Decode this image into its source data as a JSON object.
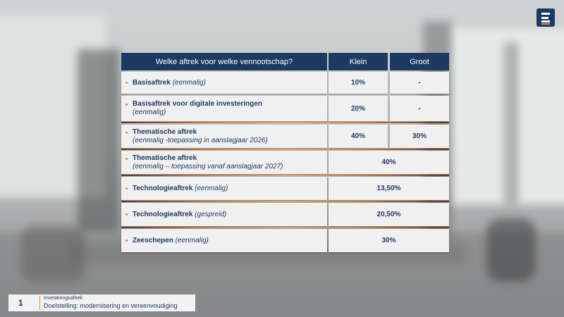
{
  "header": {
    "question": "Welke aftrek voor welke vennootschap?",
    "col_klein": "Klein",
    "col_groot": "Groot"
  },
  "rows": [
    {
      "name": "Basisaftrek",
      "note": "(eenmalig)",
      "klein": "10%",
      "groot": "-"
    },
    {
      "name": "Basisaftrek voor digitale investeringen",
      "note": "(eenmalig)",
      "klein": "20%",
      "groot": "-"
    },
    {
      "name": "Thematische aftrek",
      "note": "(eenmalig -toepassing in aanslagjaar 2026)",
      "klein": "40%",
      "groot": "30%"
    },
    {
      "name": "Thematische aftrek",
      "note": "(eenmalig – toepassing vanaf aanslagjaar 2027)",
      "value": "40%"
    },
    {
      "name": "Technologieaftrek",
      "note": "(eenmalig)",
      "value": "13,50%"
    },
    {
      "name": "Technologieaftrek",
      "note": "(gespreid)",
      "value": "20,50%"
    },
    {
      "name": "Zeeschepen",
      "note": "(eenmalig)",
      "value": "30%"
    }
  ],
  "footer": {
    "page_number": "1",
    "section": "Investeringsaftrek",
    "title": "Doelstelling: modernisering en vereenvoudiging"
  },
  "colors": {
    "navy": "#1d3a63",
    "accent": "#e08a3b",
    "cell_bg": "#f1f0f0"
  },
  "icons": {
    "logo": "brand-logo-icon"
  }
}
